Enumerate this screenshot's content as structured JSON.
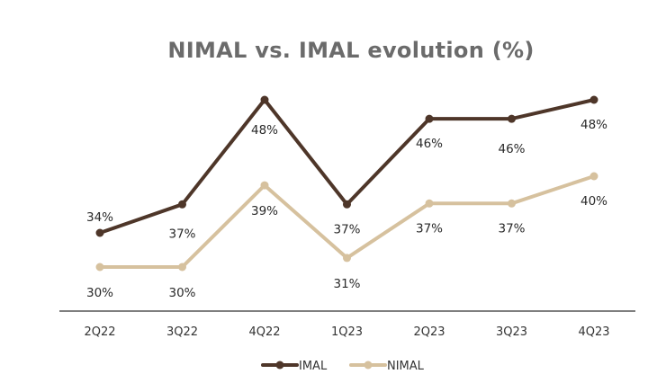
{
  "chart_data": {
    "type": "line",
    "title": "NIMAL vs. IMAL evolution (%)",
    "xlabel": "",
    "ylabel": "",
    "categories": [
      "2Q22",
      "3Q22",
      "4Q22",
      "1Q23",
      "2Q23",
      "3Q23",
      "4Q23"
    ],
    "series": [
      {
        "name": "IMAL",
        "values": [
          34,
          37,
          48,
          37,
          46,
          46,
          48
        ],
        "labels": [
          "34%",
          "37%",
          "48%",
          "37%",
          "46%",
          "46%",
          "48%"
        ],
        "color": "#4e3629"
      },
      {
        "name": "NIMAL",
        "values": [
          30,
          30,
          39,
          31,
          37,
          37,
          40
        ],
        "labels": [
          "30%",
          "30%",
          "39%",
          "31%",
          "37%",
          "37%",
          "40%"
        ],
        "color": "#d6c19e"
      }
    ],
    "grid": false,
    "legend_position": "bottom-center"
  }
}
